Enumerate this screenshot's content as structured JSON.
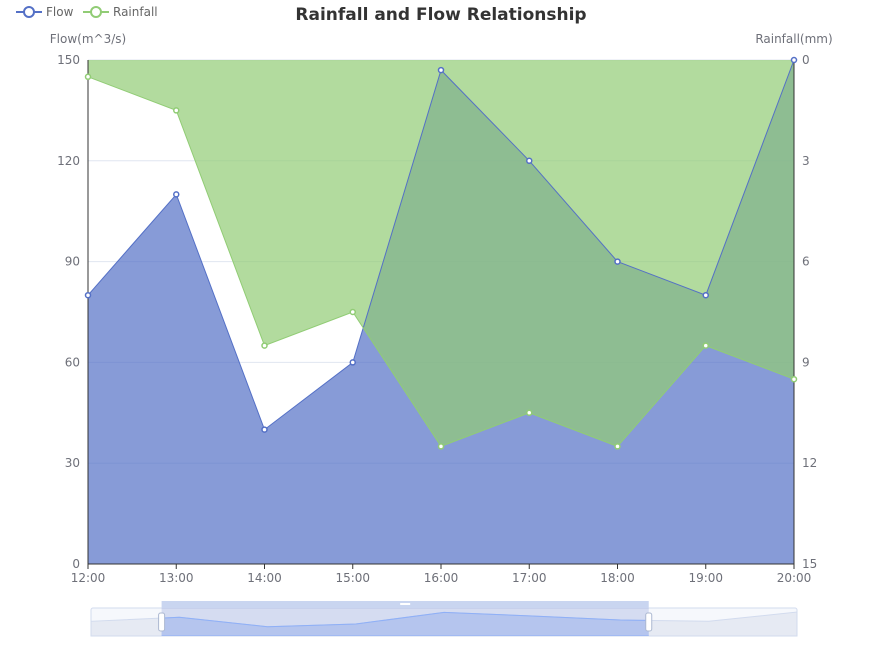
{
  "chart_data": {
    "type": "area",
    "title": "Rainfall and Flow Relationship",
    "x": [
      "12:00",
      "13:00",
      "14:00",
      "15:00",
      "16:00",
      "17:00",
      "18:00",
      "19:00",
      "20:00"
    ],
    "xlabel": "",
    "ylabel_left": "Flow(m^3/s)",
    "ylabel_right": "Rainfall(mm)",
    "ylim_left": [
      0,
      150
    ],
    "ylim_right": [
      0,
      15
    ],
    "right_axis_inverted": true,
    "yticks_left": [
      "0",
      "30",
      "60",
      "90",
      "120",
      "150"
    ],
    "yticks_right": [
      "0",
      "3",
      "6",
      "9",
      "12",
      "15"
    ],
    "legend_position": "top-left",
    "grid": true,
    "series": [
      {
        "name": "Flow",
        "axis": "left",
        "color": "#5470c6",
        "values": [
          80,
          110,
          40,
          60,
          147,
          120,
          90,
          80,
          150
        ]
      },
      {
        "name": "Rainfall",
        "axis": "right",
        "color": "#91cc75",
        "values": [
          0.5,
          1.5,
          8.5,
          7.5,
          11.5,
          10.5,
          11.5,
          8.5,
          9.5
        ]
      }
    ],
    "data_zoom": {
      "start_fraction": 0.1,
      "end_fraction": 0.79
    }
  }
}
